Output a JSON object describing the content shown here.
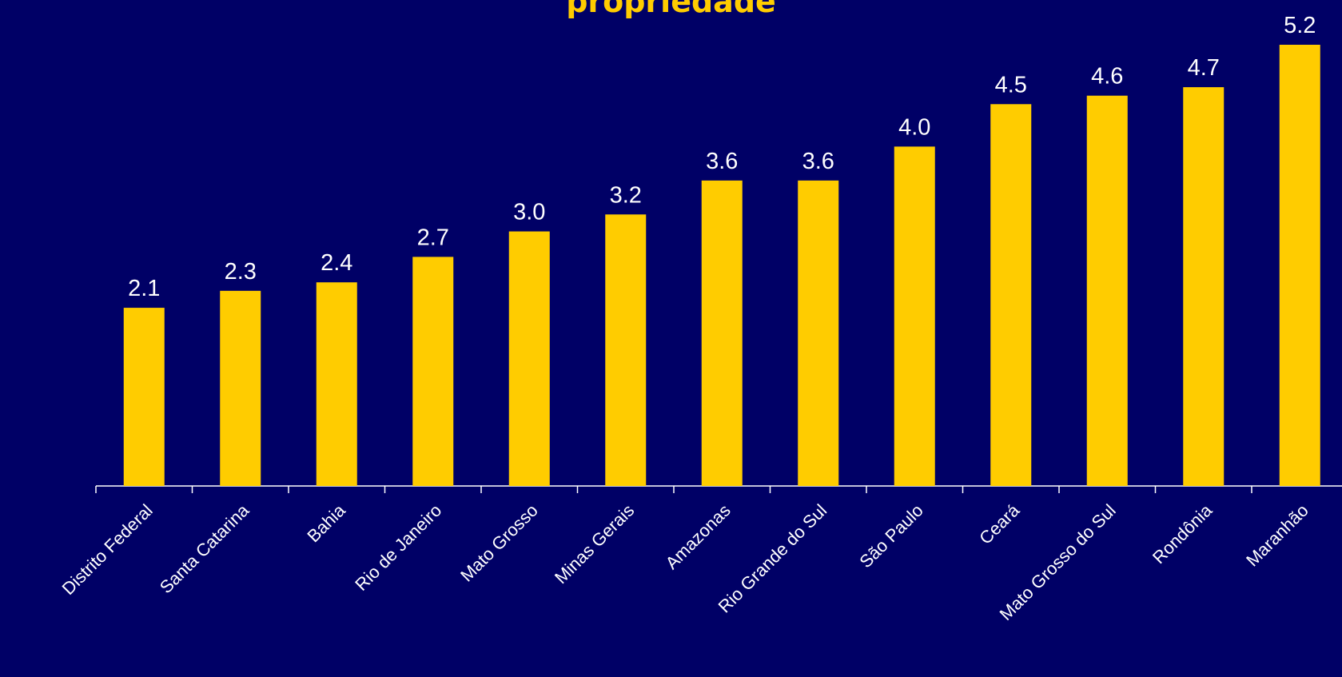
{
  "chart_data": {
    "type": "bar",
    "title": "propriedade",
    "categories": [
      "Distrito Federal",
      "Santa Catarina",
      "Bahia",
      "Rio de Janeiro",
      "Mato Grosso",
      "Minas Gerais",
      "Amazonas",
      "Rio Grande do Sul",
      "São Paulo",
      "Ceará",
      "Mato Grosso do Sul",
      "Rondônia",
      "Maranhão"
    ],
    "values": [
      2.1,
      2.3,
      2.4,
      2.7,
      3.0,
      3.2,
      3.6,
      3.6,
      4.0,
      4.5,
      4.6,
      4.7,
      5.2
    ],
    "value_labels": [
      "2.1",
      "2.3",
      "2.4",
      "2.7",
      "3.0",
      "3.2",
      "3.6",
      "3.6",
      "4.0",
      "4.5",
      "4.6",
      "4.7",
      "5.2"
    ],
    "ylim": [
      0,
      5.2
    ],
    "grid": false,
    "colors": {
      "background": "#000066",
      "bar": "#ffcc00",
      "title": "#ffcc00",
      "text": "#ffffff",
      "axis": "#ffffff"
    }
  }
}
